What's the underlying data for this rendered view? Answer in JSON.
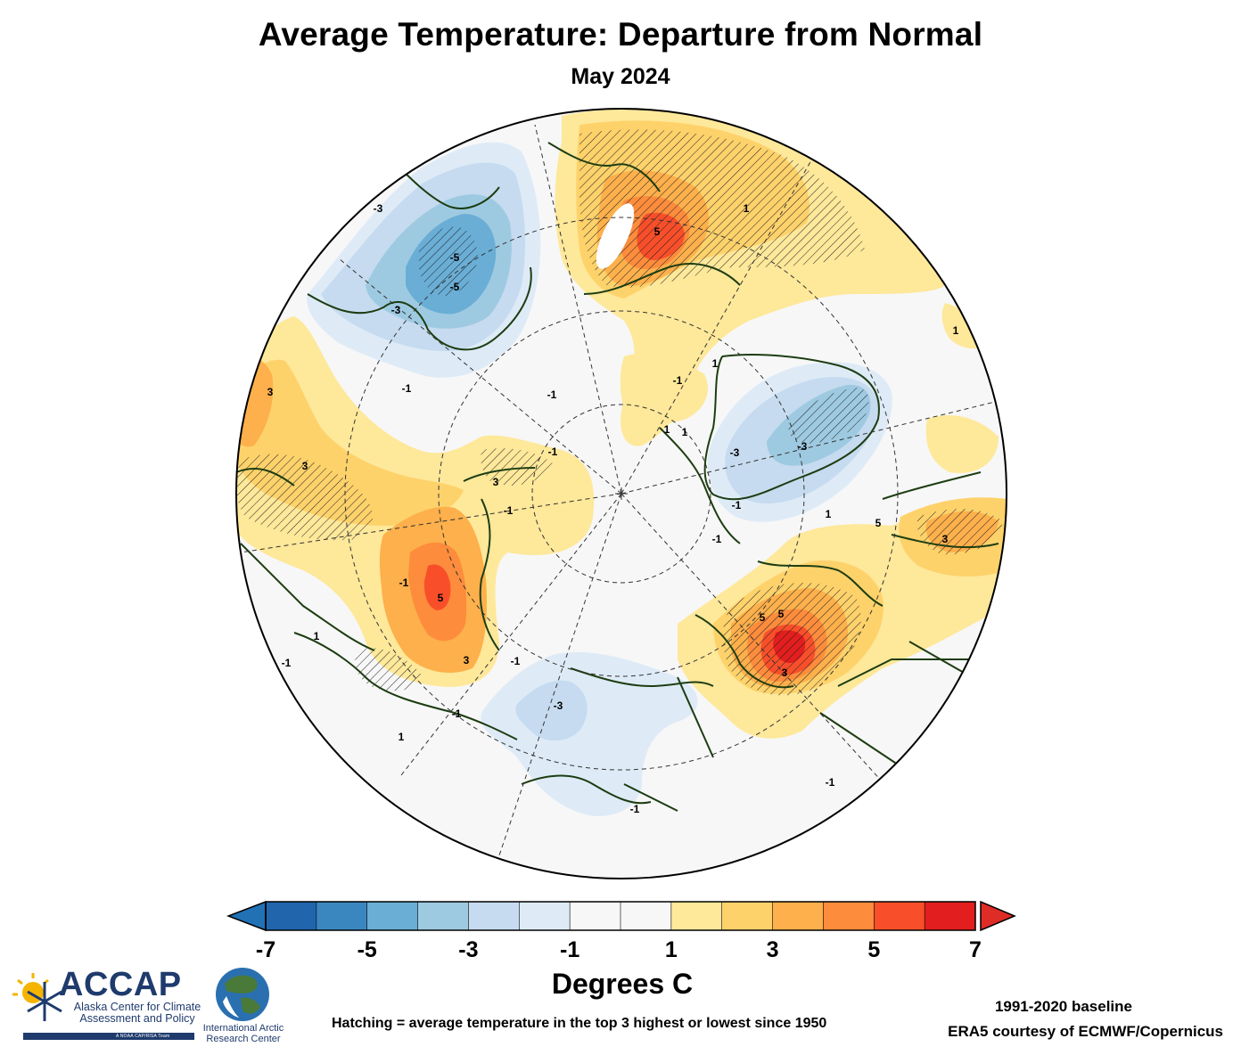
{
  "header": {
    "title": "Average Temperature: Departure from Normal",
    "subtitle": "May 2024"
  },
  "colorbar": {
    "unit_label": "Degrees C",
    "range": [
      -7,
      7
    ],
    "step": 1,
    "tick_labels": [
      "-7",
      "-5",
      "-3",
      "-1",
      "1",
      "3",
      "5",
      "7"
    ],
    "bins": [
      {
        "from": -7,
        "to": -6,
        "color": "#2166ac"
      },
      {
        "from": -6,
        "to": -5,
        "color": "#3a87c0"
      },
      {
        "from": -5,
        "to": -4,
        "color": "#6aaed6"
      },
      {
        "from": -4,
        "to": -3,
        "color": "#9ecae1"
      },
      {
        "from": -3,
        "to": -2,
        "color": "#c6dbef"
      },
      {
        "from": -2,
        "to": -1,
        "color": "#deebf7"
      },
      {
        "from": -1,
        "to": 0,
        "color": "#f7f7f7"
      },
      {
        "from": 0,
        "to": 1,
        "color": "#f7f7f7"
      },
      {
        "from": 1,
        "to": 2,
        "color": "#fee89a"
      },
      {
        "from": 2,
        "to": 3,
        "color": "#fed26b"
      },
      {
        "from": 3,
        "to": 4,
        "color": "#fdb04b"
      },
      {
        "from": 4,
        "to": 5,
        "color": "#fd8c3c"
      },
      {
        "from": 5,
        "to": 6,
        "color": "#f84f2a"
      },
      {
        "from": 6,
        "to": 7,
        "color": "#e31e1e"
      }
    ],
    "extend_low_color": "#2171b5",
    "extend_high_color": "#de2d26"
  },
  "map": {
    "projection": "north polar stereographic",
    "coastline_color": "#1d3d12",
    "graticule_color": "#333333",
    "contour_labels": [
      "-3",
      "-5",
      "-5",
      "-3",
      "-1",
      "-3",
      "3",
      "3",
      "3",
      "-1",
      "-1",
      "5",
      "3",
      "-1",
      "-1",
      "-1",
      "-3",
      "-1",
      "-1",
      "1",
      "1",
      "5",
      "5",
      "1",
      "1",
      "-1",
      "1",
      "-3",
      "-1",
      "1",
      "1",
      "5",
      "3",
      "5",
      "-1",
      "3",
      "-1",
      "1",
      "-1"
    ]
  },
  "footer": {
    "hatching_note": "Hatching = average temperature in the top 3 highest or lowest since 1950",
    "baseline": "1991-2020 baseline",
    "source": "ERA5 courtesy of ECMWF/Copernicus",
    "accap_name": "ACCAP",
    "accap_full_name": "Alaska Center for Climate Assessment and Policy",
    "accap_tagline": "A NOAA CAP/RISA Team",
    "iarc_name": "International Arctic Research Center"
  },
  "colors": {
    "accap_navy": "#1f3b6d",
    "iarc_blue": "#2a6fb0",
    "iarc_green": "#4a7a3a"
  }
}
